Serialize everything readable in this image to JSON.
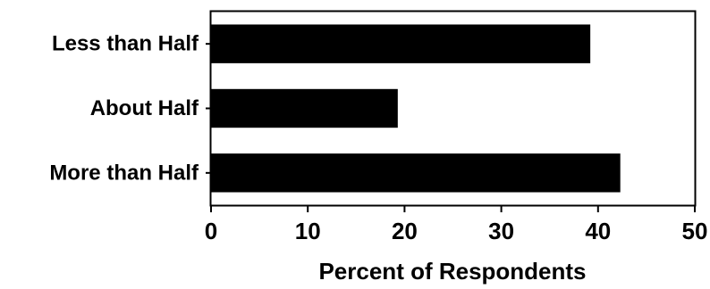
{
  "chart_data": {
    "type": "bar",
    "orientation": "horizontal",
    "categories": [
      "Less than Half",
      "About Half",
      "More than Half"
    ],
    "values": [
      39.2,
      19.3,
      42.3
    ],
    "title": "",
    "xlabel": "Percent of Respondents",
    "ylabel": "",
    "xlim": [
      0,
      50
    ],
    "xticks": [
      "0",
      "10",
      "20",
      "30",
      "40",
      "50"
    ],
    "grid": false,
    "legend": "none",
    "bar_color": "#000000"
  }
}
